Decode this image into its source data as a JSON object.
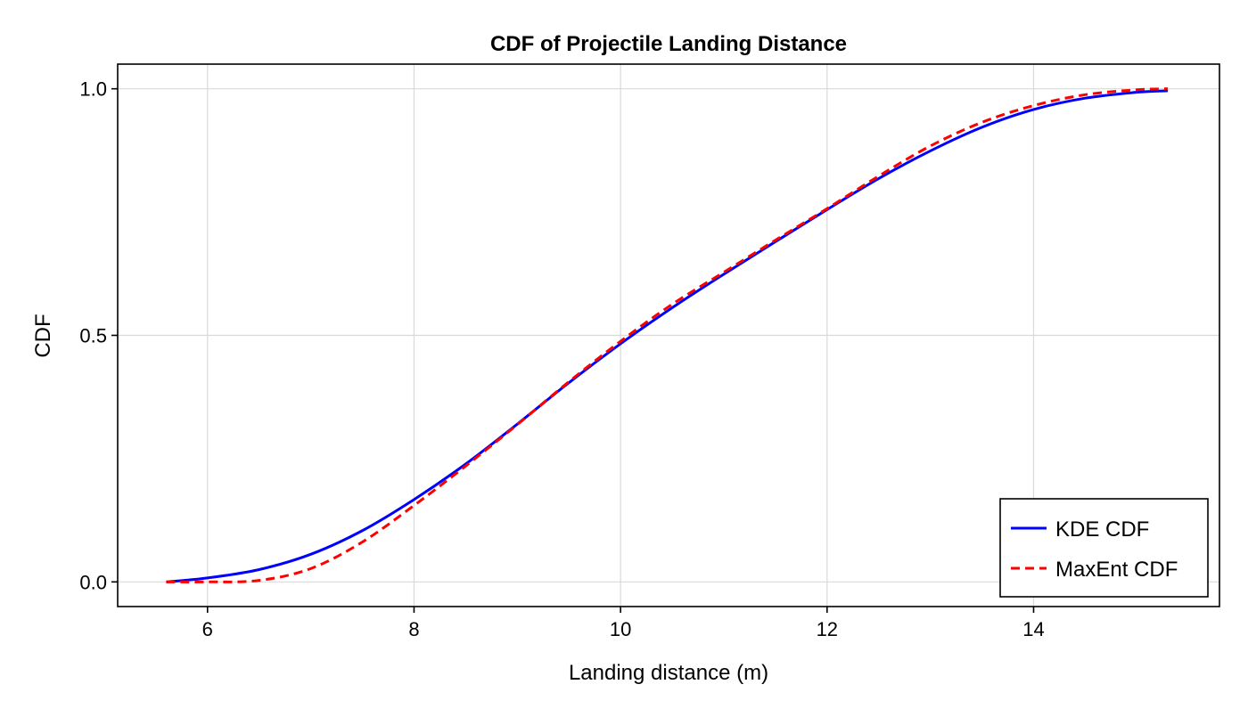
{
  "chart_data": {
    "type": "line",
    "title": "CDF of Projectile Landing Distance",
    "xlabel": "Landing distance (m)",
    "ylabel": "CDF",
    "xlim": [
      5.13,
      15.8
    ],
    "ylim": [
      -0.05,
      1.05
    ],
    "x_ticks": [
      6,
      8,
      10,
      12,
      14
    ],
    "x_tick_labels": [
      "6",
      "8",
      "10",
      "12",
      "14"
    ],
    "y_ticks": [
      0.0,
      0.5,
      1.0
    ],
    "y_tick_labels": [
      "0.0",
      "0.5",
      "1.0"
    ],
    "grid": true,
    "legend_position": "bottom-right",
    "series": [
      {
        "name": "KDE CDF",
        "color": "#0000ff",
        "style": "solid",
        "x": [
          5.6,
          6.0,
          6.5,
          7.0,
          7.5,
          8.0,
          8.5,
          9.0,
          9.5,
          10.0,
          10.5,
          11.0,
          11.5,
          12.0,
          12.5,
          13.0,
          13.5,
          14.0,
          14.5,
          15.0,
          15.3
        ],
        "y": [
          0.0,
          0.008,
          0.025,
          0.056,
          0.104,
          0.167,
          0.239,
          0.32,
          0.404,
          0.483,
          0.556,
          0.624,
          0.69,
          0.755,
          0.818,
          0.874,
          0.922,
          0.958,
          0.981,
          0.993,
          0.996
        ]
      },
      {
        "name": "MaxEnt CDF",
        "color": "#ff0000",
        "style": "dashed",
        "x": [
          5.6,
          6.0,
          6.5,
          7.0,
          7.5,
          8.0,
          8.5,
          9.0,
          9.5,
          10.0,
          10.5,
          11.0,
          11.5,
          12.0,
          12.5,
          13.0,
          13.5,
          14.0,
          14.5,
          15.0,
          15.3
        ],
        "y": [
          0.0,
          0.0,
          0.003,
          0.027,
          0.081,
          0.155,
          0.235,
          0.319,
          0.406,
          0.488,
          0.563,
          0.628,
          0.693,
          0.757,
          0.823,
          0.884,
          0.932,
          0.966,
          0.988,
          0.998,
          1.0
        ]
      }
    ]
  }
}
